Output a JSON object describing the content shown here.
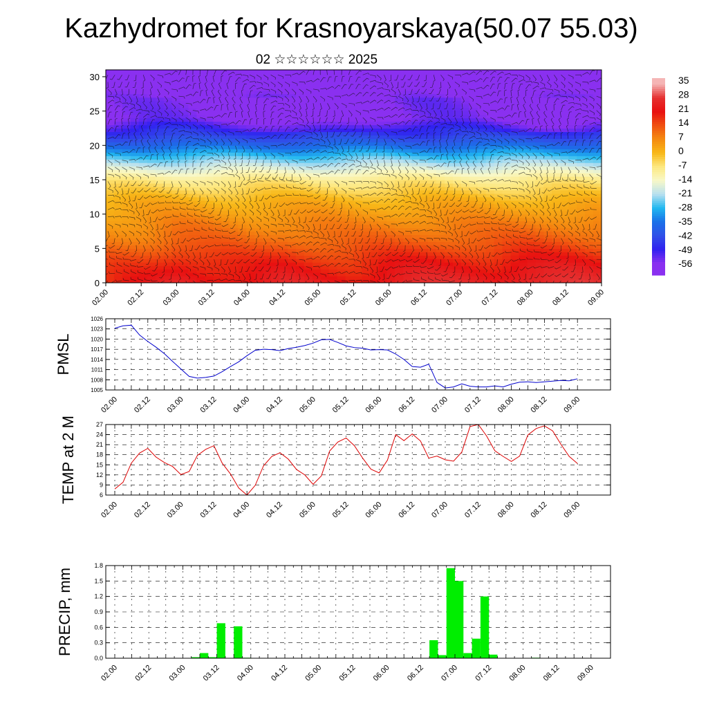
{
  "header": {
    "title": "Kazhydromet for Krasnoyarskaya(50.07 55.03)",
    "subtitle": "02 ☆☆☆☆☆☆ 2025"
  },
  "time_labels": [
    "02.00",
    "02.12",
    "03.00",
    "03.12",
    "04.00",
    "04.12",
    "05.00",
    "05.12",
    "06.00",
    "06.12",
    "07.00",
    "07.12",
    "08.00",
    "08.12",
    "09.00"
  ],
  "chart_data": [
    {
      "type": "heatmap",
      "name_hint": "temperature-cross-section",
      "x": [
        "02.00",
        "02.12",
        "03.00",
        "03.12",
        "04.00",
        "04.12",
        "05.00",
        "05.12",
        "06.00",
        "06.12",
        "07.00",
        "07.12",
        "08.00",
        "08.12",
        "09.00"
      ],
      "y_ticks": [
        0,
        5,
        10,
        15,
        20,
        25,
        30
      ],
      "ylim": [
        0,
        31
      ],
      "colorbar": {
        "labels": [
          "35",
          "28",
          "21",
          "14",
          "7",
          "0",
          "-7",
          "-14",
          "-21",
          "-28",
          "-35",
          "-42",
          "-49",
          "-56"
        ],
        "values": [
          35,
          28,
          21,
          14,
          7,
          0,
          -7,
          -14,
          -21,
          -28,
          -35,
          -42,
          -49,
          -56
        ],
        "colors": [
          "#f5b5b5",
          "#e53030",
          "#e81010",
          "#f05010",
          "#f58a10",
          "#f8b818",
          "#fde880",
          "#f8f8c8",
          "#b8e0f0",
          "#20b8f0",
          "#1a70e8",
          "#3050e8",
          "#3020f0",
          "#8a30f0"
        ]
      },
      "vertical_profile": [
        {
          "level": 0,
          "value": 24
        },
        {
          "level": 3,
          "value": 19
        },
        {
          "level": 6,
          "value": 12
        },
        {
          "level": 9,
          "value": 7
        },
        {
          "level": 12,
          "value": 1
        },
        {
          "level": 15,
          "value": -8
        },
        {
          "level": 18,
          "value": -24
        },
        {
          "level": 21,
          "value": -42
        },
        {
          "level": 24,
          "value": -56
        },
        {
          "level": 27,
          "value": -56
        },
        {
          "level": 30,
          "value": -62
        }
      ],
      "surface_modulation": [
        0.3,
        0.5,
        0.9,
        0.7,
        0.6,
        0.8,
        0.7,
        0.6,
        0.8,
        0.9,
        0.9,
        0.8,
        1.0,
        1.0,
        0.9
      ],
      "grid": false,
      "barbs": true
    },
    {
      "type": "line",
      "ylabel": "PMSL",
      "y_ticks": [
        1005,
        1008,
        1011,
        1014,
        1017,
        1020,
        1023,
        1026
      ],
      "ylim": [
        1005,
        1026
      ],
      "color": "#0000cc",
      "series": [
        {
          "values": [
            1023.2,
            1023.9,
            1024.1,
            1021.2,
            1019.3,
            1017.6,
            1015.7,
            1013.4,
            1011.2,
            1009.0,
            1008.5,
            1008.7,
            1009.1,
            1010.4,
            1011.9,
            1013.3,
            1015.1,
            1016.7,
            1017.0,
            1016.9,
            1016.6,
            1017.2,
            1017.6,
            1018.1,
            1018.8,
            1019.8,
            1019.9,
            1019.0,
            1018.0,
            1017.5,
            1017.3,
            1016.8,
            1016.9,
            1016.8,
            1015.6,
            1014.0,
            1011.9,
            1011.7,
            1012.6,
            1007.2,
            1005.6,
            1005.9,
            1006.8,
            1006.1,
            1005.9,
            1005.9,
            1006.2,
            1005.9,
            1006.7,
            1007.3,
            1007.4,
            1007.2,
            1007.4,
            1007.6,
            1007.8,
            1007.7,
            1008.3
          ]
        }
      ],
      "grid": true
    },
    {
      "type": "line",
      "ylabel": "TEMP at 2 M",
      "y_ticks": [
        6,
        9,
        12,
        15,
        18,
        21,
        24,
        27
      ],
      "ylim": [
        6,
        27
      ],
      "color": "#dd0000",
      "series": [
        {
          "values": [
            7.8,
            9.8,
            15.5,
            18.5,
            19.9,
            17.3,
            15.7,
            14.5,
            12.1,
            13.0,
            17.8,
            19.6,
            20.7,
            15.5,
            12.3,
            8.1,
            6.0,
            8.9,
            14.7,
            17.5,
            18.6,
            16.7,
            13.6,
            12.0,
            9.2,
            11.7,
            19.1,
            21.8,
            23.0,
            20.7,
            17.0,
            13.7,
            12.6,
            16.4,
            24.0,
            22.2,
            24.2,
            22.1,
            17.0,
            17.6,
            16.5,
            16.1,
            18.8,
            26.4,
            27.0,
            23.6,
            19.2,
            17.5,
            16.0,
            17.6,
            23.9,
            25.8,
            26.6,
            25.1,
            21.1,
            17.5,
            15.4
          ]
        }
      ],
      "grid": true
    },
    {
      "type": "bar",
      "ylabel": "PRECIP, mm",
      "y_ticks": [
        "0.0",
        "0.3",
        "0.6",
        "0.9",
        "1.2",
        "1.5",
        "1.8"
      ],
      "ylim": [
        0,
        1.8
      ],
      "color": "#00ee00",
      "series": [
        {
          "values": [
            0,
            0,
            0,
            0,
            0,
            0,
            0,
            0,
            0,
            0.02,
            0.1,
            0.02,
            0.68,
            0,
            0.62,
            0.01,
            0,
            0,
            0,
            0,
            0,
            0,
            0,
            0,
            0,
            0,
            0,
            0,
            0,
            0,
            0,
            0,
            0,
            0,
            0,
            0,
            0,
            0.35,
            0.06,
            1.75,
            1.5,
            0.1,
            0.38,
            1.2,
            0.07,
            0,
            0,
            0,
            0,
            0.01,
            0,
            0,
            0,
            0,
            0,
            0,
            0
          ]
        }
      ],
      "grid": true
    }
  ]
}
